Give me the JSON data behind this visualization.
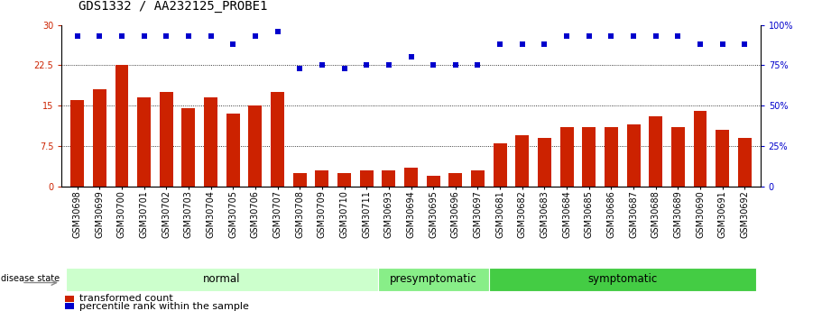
{
  "title": "GDS1332 / AA232125_PROBE1",
  "samples": [
    "GSM30698",
    "GSM30699",
    "GSM30700",
    "GSM30701",
    "GSM30702",
    "GSM30703",
    "GSM30704",
    "GSM30705",
    "GSM30706",
    "GSM30707",
    "GSM30708",
    "GSM30709",
    "GSM30710",
    "GSM30711",
    "GSM30693",
    "GSM30694",
    "GSM30695",
    "GSM30696",
    "GSM30697",
    "GSM30681",
    "GSM30682",
    "GSM30683",
    "GSM30684",
    "GSM30685",
    "GSM30686",
    "GSM30687",
    "GSM30688",
    "GSM30689",
    "GSM30690",
    "GSM30691",
    "GSM30692"
  ],
  "bar_values": [
    16.0,
    18.0,
    22.5,
    16.5,
    17.5,
    14.5,
    16.5,
    13.5,
    15.0,
    17.5,
    2.5,
    3.0,
    2.5,
    3.0,
    3.0,
    3.5,
    2.0,
    2.5,
    3.0,
    8.0,
    9.5,
    9.0,
    11.0,
    11.0,
    11.0,
    11.5,
    13.0,
    11.0,
    14.0,
    10.5,
    9.0
  ],
  "percentile_values": [
    93,
    93,
    93,
    93,
    93,
    93,
    93,
    88,
    93,
    96,
    73,
    75,
    73,
    75,
    75,
    80,
    75,
    75,
    75,
    88,
    88,
    88,
    93,
    93,
    93,
    93,
    93,
    93,
    88,
    88,
    88
  ],
  "groups": [
    {
      "label": "normal",
      "start": 0,
      "end": 14,
      "color": "#ccffcc"
    },
    {
      "label": "presymptomatic",
      "start": 14,
      "end": 19,
      "color": "#88ee88"
    },
    {
      "label": "symptomatic",
      "start": 19,
      "end": 31,
      "color": "#44cc44"
    }
  ],
  "bar_color": "#cc2200",
  "dot_color": "#0000cc",
  "left_ylim": [
    0,
    30
  ],
  "right_ylim": [
    0,
    100
  ],
  "left_yticks": [
    0,
    7.5,
    15,
    22.5,
    30
  ],
  "right_yticks": [
    0,
    25,
    50,
    75,
    100
  ],
  "left_yticklabels": [
    "0",
    "7.5",
    "15",
    "22.5",
    "30"
  ],
  "right_yticklabels": [
    "0",
    "25%",
    "50%",
    "75%",
    "100%"
  ],
  "hlines": [
    7.5,
    15.0,
    22.5
  ],
  "disease_state_label": "disease state",
  "legend_bar_label": "transformed count",
  "legend_dot_label": "percentile rank within the sample",
  "title_fontsize": 10,
  "tick_fontsize": 7,
  "group_label_fontsize": 8.5,
  "bg_color": "#ffffff"
}
